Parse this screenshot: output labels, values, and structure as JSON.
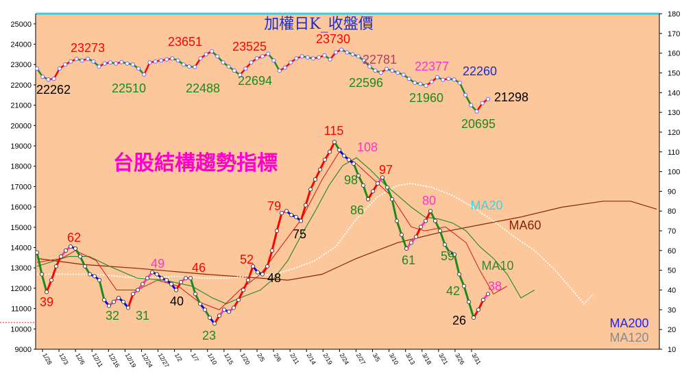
{
  "chart_data": {
    "type": "line",
    "title": "加權日K_收盤價",
    "subtitle": "台股結構趨勢指標",
    "x_ticks": [
      "1/28",
      "12/3",
      "12/6",
      "12/11",
      "12/16",
      "12/19",
      "12/24",
      "12/27",
      "1/2",
      "1/7",
      "1/10",
      "1/15",
      "1/20",
      "2/5",
      "2/6",
      "2/11",
      "2/14",
      "2/19",
      "2/24",
      "2/27",
      "3/5",
      "3/10",
      "3/13",
      "3/18",
      "3/21",
      "3/26",
      "3/31"
    ],
    "y_left_ticks": [
      "25000",
      "24000",
      "23000",
      "22000",
      "21000",
      "20000",
      "19000",
      "18000",
      "17000",
      "16000",
      "15000",
      "14000",
      "13000",
      "12000",
      "11000",
      "10000",
      "9000"
    ],
    "y_right_ticks": [
      "180",
      "170",
      "160",
      "150",
      "140",
      "130",
      "120",
      "110",
      "100",
      "90",
      "80",
      "70",
      "60",
      "50",
      "40",
      "30",
      "20",
      "10"
    ],
    "ylim_left": [
      9000,
      25500
    ],
    "ylim_right": [
      10,
      180
    ],
    "colors": {
      "background": "#fcc79a",
      "title": "#1a2bd0",
      "subtitle": "#ff00cc",
      "up": "#ff0000",
      "down": "#1a8a1a",
      "neutral": "#0000ff",
      "pink": "#ff33cc",
      "ma10": "#2e8b2e",
      "ma20": "#ffffff",
      "ma60": "#8b2200",
      "ma120": "#8a8a8a",
      "ma200": "#2020ff"
    },
    "series": [
      {
        "name": "MA20",
        "values": [
          null,
          null,
          null,
          null,
          null,
          null,
          null,
          null,
          null,
          null,
          null,
          null,
          null,
          null,
          null,
          null,
          null,
          null,
          null,
          null,
          null,
          null,
          48,
          48,
          48,
          48,
          48,
          47,
          47,
          47,
          46,
          46,
          46,
          46,
          47,
          47,
          47,
          47,
          47,
          47,
          48,
          48,
          49,
          49,
          49,
          50,
          51,
          52,
          53,
          54,
          55,
          57,
          60,
          64,
          69,
          74,
          79,
          83,
          87,
          90,
          92,
          93,
          94,
          94,
          94,
          93,
          93,
          92,
          91,
          90,
          89,
          88,
          87,
          85,
          83,
          80,
          77,
          73,
          68,
          62,
          56,
          49,
          43,
          38,
          34,
          33,
          36
        ]
      },
      {
        "name": "MA60",
        "values": [
          null,
          null,
          null,
          null,
          null,
          null,
          null,
          null,
          null,
          null,
          null,
          null,
          null,
          null,
          null,
          null,
          null,
          null,
          null,
          null,
          null,
          null,
          null,
          null,
          null,
          null,
          null,
          null,
          null,
          null,
          null,
          null,
          null,
          null,
          null,
          null,
          null,
          null,
          null,
          null,
          null,
          null,
          null,
          null,
          null,
          null,
          null,
          null,
          null,
          null,
          null,
          null,
          null,
          null,
          null,
          null,
          null,
          null,
          null,
          null,
          null,
          null,
          null,
          null,
          null,
          null,
          null,
          null,
          null,
          null,
          null,
          null,
          null,
          null,
          null,
          null,
          null,
          null,
          null,
          null,
          null,
          null,
          null,
          null,
          null,
          null,
          null
        ]
      },
      {
        "name": "MA10",
        "values": [
          null,
          null,
          null,
          null,
          null,
          null,
          null,
          null,
          null,
          null,
          50,
          50,
          51,
          52,
          53,
          55,
          55,
          54,
          52,
          50,
          48,
          46,
          44,
          44,
          45,
          47,
          48,
          48,
          48,
          47,
          46,
          45,
          45,
          44,
          43,
          42,
          40,
          38,
          36,
          36,
          37,
          40,
          44,
          48,
          53,
          58,
          64,
          70,
          76,
          82,
          88,
          94,
          98,
          99,
          97,
          95,
          92,
          89,
          86,
          83,
          80,
          77,
          74,
          72,
          70,
          68,
          67,
          66,
          65,
          64,
          63,
          62,
          58,
          54,
          50,
          45,
          41,
          38,
          36,
          36,
          37,
          38
        ]
      },
      {
        "name": "MA120",
        "values": []
      },
      {
        "name": "MA200",
        "values": []
      }
    ],
    "index_close_labels": [
      {
        "text": "23273",
        "color": "#ff0000"
      },
      {
        "text": "22262",
        "color": "#000000"
      },
      {
        "text": "22510",
        "color": "#1a8a1a"
      },
      {
        "text": "23651",
        "color": "#ff0000"
      },
      {
        "text": "22488",
        "color": "#1a8a1a"
      },
      {
        "text": "23525",
        "color": "#ff0000"
      },
      {
        "text": "22694",
        "color": "#1a8a1a"
      },
      {
        "text": "23730",
        "color": "#ff0000"
      },
      {
        "text": "22781",
        "color": "#b04060"
      },
      {
        "text": "22596",
        "color": "#1a8a1a"
      },
      {
        "text": "22377",
        "color": "#ff33cc"
      },
      {
        "text": "22260",
        "color": "#1a2bd0"
      },
      {
        "text": "21960",
        "color": "#1a8a1a"
      },
      {
        "text": "21298",
        "color": "#000000"
      },
      {
        "text": "20695",
        "color": "#1a8a1a"
      }
    ],
    "indicator_labels": [
      {
        "text": "62",
        "color": "#ff0000"
      },
      {
        "text": "39",
        "color": "#ff0000"
      },
      {
        "text": "32",
        "color": "#1a8a1a"
      },
      {
        "text": "31",
        "color": "#1a8a1a"
      },
      {
        "text": "49",
        "color": "#ff33cc"
      },
      {
        "text": "40",
        "color": "#000000"
      },
      {
        "text": "46",
        "color": "#ff0000"
      },
      {
        "text": "23",
        "color": "#1a8a1a"
      },
      {
        "text": "52",
        "color": "#ff0000"
      },
      {
        "text": "48",
        "color": "#000000"
      },
      {
        "text": "79",
        "color": "#ff0000"
      },
      {
        "text": "75",
        "color": "#000000"
      },
      {
        "text": "115",
        "color": "#ff0000"
      },
      {
        "text": "108",
        "color": "#ff33cc"
      },
      {
        "text": "98",
        "color": "#1a8a1a"
      },
      {
        "text": "86",
        "color": "#1a8a1a"
      },
      {
        "text": "97",
        "color": "#ff0000"
      },
      {
        "text": "61",
        "color": "#1a8a1a"
      },
      {
        "text": "80",
        "color": "#ff33cc"
      },
      {
        "text": "59",
        "color": "#1a8a1a"
      },
      {
        "text": "42",
        "color": "#1a8a1a"
      },
      {
        "text": "26",
        "color": "#000000"
      },
      {
        "text": "38",
        "color": "#ff33cc"
      }
    ],
    "ma_labels": [
      "MA20",
      "MA60",
      "MA10",
      "MA200",
      "MA120"
    ],
    "index_close": [
      22800,
      22400,
      22262,
      22300,
      22800,
      23000,
      23150,
      23273,
      23200,
      23280,
      23150,
      22900,
      23050,
      23100,
      23050,
      23120,
      23050,
      23000,
      22800,
      22510,
      23100,
      23150,
      23200,
      23250,
      23300,
      23200,
      23000,
      22900,
      22880,
      23300,
      23500,
      23651,
      23400,
      23100,
      22900,
      22700,
      22488,
      22800,
      23100,
      23300,
      23400,
      23525,
      23200,
      22694,
      22850,
      23100,
      23300,
      23400,
      23350,
      23300,
      23350,
      23450,
      23250,
      23600,
      23730,
      23600,
      23500,
      23400,
      23200,
      22900,
      22700,
      22600,
      22781,
      22700,
      22596,
      22500,
      22300,
      22100,
      22050,
      21960,
      22150,
      22377,
      22250,
      22300,
      22260,
      22100,
      21500,
      21000,
      20695,
      21100,
      21298
    ],
    "indicator": [
      59,
      48,
      39,
      45,
      52,
      57,
      60,
      62,
      61,
      57,
      52,
      48,
      47,
      45,
      35,
      32,
      34,
      36,
      34,
      31,
      38,
      40,
      43,
      46,
      49,
      48,
      46,
      45,
      43,
      40,
      44,
      46,
      46,
      38,
      33,
      30,
      26,
      23,
      27,
      30,
      29,
      31,
      35,
      40,
      45,
      52,
      49,
      48,
      52,
      60,
      70,
      79,
      80,
      78,
      77,
      75,
      83,
      91,
      96,
      101,
      106,
      110,
      115,
      111,
      108,
      106,
      104,
      98,
      93,
      86,
      90,
      94,
      97,
      92,
      86,
      75,
      68,
      61,
      64,
      67,
      72,
      75,
      80,
      75,
      70,
      63,
      59,
      58,
      48,
      42,
      34,
      26,
      30,
      35,
      38
    ]
  }
}
